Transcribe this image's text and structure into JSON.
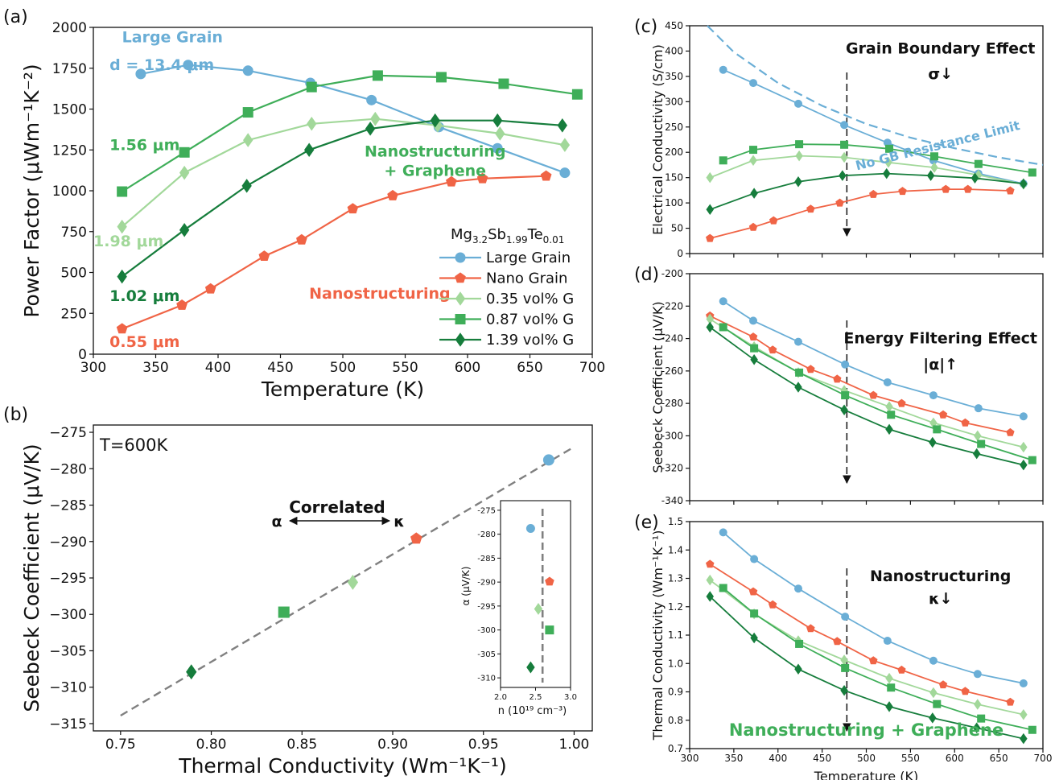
{
  "figure": {
    "panels": [
      {
        "key": "a",
        "label": "(a)",
        "type": "line",
        "xlabel": "Temperature (K)",
        "ylabel": "Power Factor (μWm⁻¹K⁻²)",
        "xlim": [
          300,
          700
        ],
        "ylim": [
          0,
          2000
        ],
        "xticks": [
          300,
          350,
          400,
          450,
          500,
          550,
          600,
          650,
          700
        ],
        "yticks": [
          0,
          250,
          500,
          750,
          1000,
          1250,
          1500,
          1750,
          2000
        ],
        "legend": {
          "title": "Mg3.2Sb1.99Te0.01",
          "title_parts": [
            "Mg",
            "3.2",
            "Sb",
            "1.99",
            "Te",
            "0.01"
          ],
          "placement": "lower-right"
        },
        "series": [
          {
            "name": "Large Grain",
            "color": "#6aaed6",
            "marker": "circle",
            "x": [
              338,
              376,
              424,
              474,
              523,
              577,
              624,
              678
            ],
            "y": [
              1715,
              1770,
              1735,
              1660,
              1555,
              1390,
              1260,
              1110
            ]
          },
          {
            "name": "Nano Grain",
            "color": "#f06446",
            "marker": "pentagon",
            "x": [
              323,
              371,
              394,
              437,
              467,
              508,
              540,
              587,
              612,
              663
            ],
            "y": [
              155,
              300,
              400,
              600,
              700,
              890,
              970,
              1055,
              1075,
              1090
            ]
          },
          {
            "name": "0.35 vol% G",
            "color": "#a2d89a",
            "marker": "diamond",
            "x": [
              323,
              373,
              424,
              475,
              526,
              576,
              626,
              678
            ],
            "y": [
              780,
              1110,
              1310,
              1410,
              1440,
              1400,
              1350,
              1280
            ]
          },
          {
            "name": "0.87 vol% G",
            "color": "#3fae59",
            "marker": "square",
            "x": [
              323,
              373,
              424,
              475,
              528,
              579,
              629,
              688
            ],
            "y": [
              995,
              1235,
              1480,
              1635,
              1705,
              1695,
              1655,
              1590
            ]
          },
          {
            "name": "1.39 vol% G",
            "color": "#167d3c",
            "marker": "diamond",
            "x": [
              323,
              373,
              423,
              473,
              522,
              574,
              624,
              676
            ],
            "y": [
              475,
              760,
              1030,
              1250,
              1380,
              1430,
              1430,
              1400
            ]
          }
        ],
        "annotations": [
          {
            "text": "Large Grain",
            "color": "#6aaed6",
            "x": 323,
            "y": 1910
          },
          {
            "text": "d = 13.4 μm",
            "color": "#6aaed6",
            "x": 313,
            "y": 1740
          },
          {
            "text": "1.56 μm",
            "color": "#3fae59",
            "x": 313,
            "y": 1250
          },
          {
            "text": "1.98 μm",
            "color": "#a2d89a",
            "x": 300,
            "y": 660
          },
          {
            "text": "1.02 μm",
            "color": "#167d3c",
            "x": 313,
            "y": 325
          },
          {
            "text": "0.55 μm",
            "color": "#f06446",
            "x": 313,
            "y": 45
          },
          {
            "text": "Nanostructuring",
            "color": "#f06446",
            "x": 473,
            "y": 340
          },
          {
            "text": "Nanostructuring",
            "color": "#3fae59",
            "x": 574,
            "y": 1210
          },
          {
            "text": "+ Graphene",
            "color": "#3fae59",
            "x": 574,
            "y": 1090
          }
        ]
      },
      {
        "key": "b",
        "label": "(b)",
        "type": "scatter",
        "xlabel": "Thermal Conductivity (Wm⁻¹K⁻¹)",
        "ylabel": "Seebeck Coefficient (μV/K)",
        "xlim": [
          0.735,
          1.01
        ],
        "ylim": [
          -316,
          -274
        ],
        "xticks": [
          0.75,
          0.8,
          0.85,
          0.9,
          0.95,
          1.0
        ],
        "xtick_labels": [
          "0.75",
          "0.80",
          "0.85",
          "0.90",
          "0.95",
          "1.00"
        ],
        "yticks": [
          -315,
          -310,
          -305,
          -300,
          -295,
          -290,
          -285,
          -280,
          -275
        ],
        "yticks_labels": [
          "−315",
          "−310",
          "−305",
          "−300",
          "−295",
          "−290",
          "−285",
          "−280",
          "−275"
        ],
        "condition": "T=600K",
        "fit_line": {
          "x": [
            0.75,
            1.0
          ],
          "y": [
            -313.9,
            -277.0
          ]
        },
        "points": [
          {
            "x": 0.986,
            "y": -278.8,
            "color": "#6aaed6",
            "marker": "circle"
          },
          {
            "x": 0.913,
            "y": -289.6,
            "color": "#f06446",
            "marker": "pentagon"
          },
          {
            "x": 0.878,
            "y": -295.6,
            "color": "#a2d89a",
            "marker": "diamond"
          },
          {
            "x": 0.84,
            "y": -299.7,
            "color": "#3fae59",
            "marker": "square"
          },
          {
            "x": 0.789,
            "y": -307.9,
            "color": "#167d3c",
            "marker": "diamond"
          }
        ],
        "arrow_text": {
          "title": "Correlated",
          "left": "α",
          "right": "κ"
        },
        "inset": {
          "xlabel": "n (10¹⁹ cm⁻³)",
          "ylabel": "α (μV/K)",
          "xlim": [
            2.0,
            3.0
          ],
          "ylim": [
            -312,
            -273
          ],
          "xticks": [
            2.0,
            2.5,
            3.0
          ],
          "xtick_labels": [
            "2.0",
            "2.5",
            "3.0"
          ],
          "yticks": [
            -310,
            -305,
            -300,
            -295,
            -290,
            -285,
            -280,
            -275
          ],
          "vline": 2.6,
          "points": [
            {
              "x": 2.43,
              "y": -278.8,
              "color": "#6aaed6",
              "marker": "circle"
            },
            {
              "x": 2.7,
              "y": -289.9,
              "color": "#f06446",
              "marker": "pentagon"
            },
            {
              "x": 2.54,
              "y": -295.6,
              "color": "#a2d89a",
              "marker": "diamond"
            },
            {
              "x": 2.7,
              "y": -300.0,
              "color": "#3fae59",
              "marker": "square"
            },
            {
              "x": 2.43,
              "y": -307.8,
              "color": "#167d3c",
              "marker": "diamond"
            }
          ]
        }
      },
      {
        "key": "c",
        "label": "(c)",
        "type": "line",
        "xlabel": "",
        "ylabel": "Electrical Conductivity (S/cm)",
        "xlim": [
          300,
          700
        ],
        "ylim": [
          0,
          450
        ],
        "xticks": [
          300,
          350,
          400,
          450,
          500,
          550,
          600,
          650,
          700
        ],
        "show_xtick_labels": false,
        "yticks": [
          0,
          50,
          100,
          150,
          200,
          250,
          300,
          350,
          400,
          450
        ],
        "series": [
          {
            "color": "#6aaed6",
            "marker": "circle",
            "x": [
              338,
              372,
              423,
              475,
              524,
              576,
              627,
              678
            ],
            "y": [
              363,
              337,
              296,
              254,
              219,
              184,
              158,
              138
            ]
          },
          {
            "color": "#f06446",
            "marker": "pentagon",
            "x": [
              323,
              372,
              395,
              437,
              470,
              508,
              541,
              590,
              615,
              663
            ],
            "y": [
              30,
              52,
              65,
              88,
              100,
              117,
              123,
              127,
              127,
              124
            ]
          },
          {
            "color": "#a2d89a",
            "marker": "diamond",
            "x": [
              323,
              372,
              424,
              475,
              525,
              577,
              627,
              678
            ],
            "y": [
              150,
              184,
              193,
              190,
              180,
              170,
              155,
              137
            ]
          },
          {
            "color": "#3fae59",
            "marker": "square",
            "x": [
              338,
              372,
              424,
              475,
              526,
              577,
              627,
              688
            ],
            "y": [
              184,
              205,
              216,
              215,
              207,
              192,
              177,
              160
            ]
          },
          {
            "color": "#167d3c",
            "marker": "diamond",
            "x": [
              323,
              373,
              423,
              473,
              523,
              573,
              623,
              678
            ],
            "y": [
              87,
              119,
              142,
              154,
              158,
              154,
              149,
              138
            ]
          }
        ],
        "limit_curve": {
          "color": "#6aaed6",
          "x": [
            320,
            350,
            400,
            450,
            500,
            550,
            600,
            650,
            700
          ],
          "y": [
            450,
            398,
            337,
            292,
            256,
            229,
            208,
            190,
            175
          ]
        },
        "vline_x": 478,
        "annotations": [
          {
            "text": "Grain Boundary Effect",
            "color": "#111111",
            "x": 584,
            "y": 395
          },
          {
            "text": "σ↓",
            "color": "#111111",
            "x": 584,
            "y": 345
          },
          {
            "text": "No GB Resistance Limit",
            "color": "#6aaed6",
            "x": 582,
            "y": 205
          }
        ]
      },
      {
        "key": "d",
        "label": "(d)",
        "type": "line",
        "xlabel": "",
        "ylabel": "Seebeck Coefficient (μV/K)",
        "xlim": [
          300,
          700
        ],
        "ylim": [
          -340,
          -200
        ],
        "xticks": [
          300,
          350,
          400,
          450,
          500,
          550,
          600,
          650,
          700
        ],
        "show_xtick_labels": false,
        "yticks": [
          -340,
          -320,
          -300,
          -280,
          -260,
          -240,
          -220,
          -200
        ],
        "series": [
          {
            "color": "#6aaed6",
            "marker": "circle",
            "x": [
              338,
              372,
              423,
              476,
              524,
              576,
              627,
              678
            ],
            "y": [
              -217,
              -229,
              -242,
              -256,
              -267,
              -275,
              -283,
              -288
            ]
          },
          {
            "color": "#f06446",
            "marker": "pentagon",
            "x": [
              323,
              372,
              394,
              437,
              467,
              508,
              540,
              587,
              612,
              663
            ],
            "y": [
              -226,
              -239,
              -247,
              -259,
              -265,
              -275,
              -280,
              -287,
              -292,
              -298
            ]
          },
          {
            "color": "#a2d89a",
            "marker": "diamond",
            "x": [
              323,
              373,
              423,
              475,
              526,
              576,
              626,
              678
            ],
            "y": [
              -228,
              -245,
              -261,
              -272,
              -282,
              -292,
              -300,
              -307
            ]
          },
          {
            "color": "#3fae59",
            "marker": "square",
            "x": [
              338,
              373,
              424,
              476,
              528,
              580,
              630,
              688
            ],
            "y": [
              -233,
              -246,
              -261,
              -275,
              -287,
              -296,
              -305,
              -315
            ]
          },
          {
            "color": "#167d3c",
            "marker": "diamond",
            "x": [
              323,
              373,
              423,
              475,
              526,
              575,
              625,
              678
            ],
            "y": [
              -233,
              -253,
              -270,
              -284,
              -296,
              -304,
              -311,
              -318
            ]
          }
        ],
        "vline_x": 478,
        "annotations": [
          {
            "text": "Energy Filtering Effect",
            "color": "#111111",
            "x": 584,
            "y": -243
          },
          {
            "text": "|α|↑",
            "color": "#111111",
            "x": 584,
            "y": -259
          }
        ]
      },
      {
        "key": "e",
        "label": "(e)",
        "type": "line",
        "xlabel": "Temperature (K)",
        "ylabel": "Thermal Conductivity (Wm⁻¹K⁻¹)",
        "xlim": [
          300,
          700
        ],
        "ylim": [
          0.7,
          1.5
        ],
        "xticks": [
          300,
          350,
          400,
          450,
          500,
          550,
          600,
          650,
          700
        ],
        "show_xtick_labels": true,
        "yticks": [
          0.7,
          0.8,
          0.9,
          1.0,
          1.1,
          1.2,
          1.3,
          1.4,
          1.5
        ],
        "ytick_labels": [
          "0.7",
          "0.8",
          "0.9",
          "1.0",
          "1.1",
          "1.2",
          "1.3",
          "1.4",
          "1.5"
        ],
        "series": [
          {
            "color": "#6aaed6",
            "marker": "circle",
            "x": [
              338,
              373,
              423,
              476,
              524,
              576,
              626,
              678
            ],
            "y": [
              1.462,
              1.368,
              1.264,
              1.165,
              1.08,
              1.01,
              0.963,
              0.93
            ]
          },
          {
            "color": "#f06446",
            "marker": "pentagon",
            "x": [
              323,
              372,
              394,
              437,
              467,
              508,
              540,
              587,
              612,
              663
            ],
            "y": [
              1.35,
              1.253,
              1.207,
              1.123,
              1.078,
              1.01,
              0.977,
              0.925,
              0.902,
              0.864
            ]
          },
          {
            "color": "#a2d89a",
            "marker": "diamond",
            "x": [
              323,
              373,
              423,
              475,
              526,
              576,
              626,
              678
            ],
            "y": [
              1.294,
              1.175,
              1.08,
              1.012,
              0.948,
              0.897,
              0.856,
              0.82
            ]
          },
          {
            "color": "#3fae59",
            "marker": "square",
            "x": [
              338,
              373,
              424,
              476,
              528,
              580,
              630,
              688
            ],
            "y": [
              1.266,
              1.176,
              1.069,
              0.984,
              0.915,
              0.857,
              0.806,
              0.766
            ]
          },
          {
            "color": "#167d3c",
            "marker": "diamond",
            "x": [
              323,
              373,
              423,
              475,
              526,
              575,
              625,
              678
            ],
            "y": [
              1.236,
              1.09,
              0.98,
              0.905,
              0.848,
              0.808,
              0.773,
              0.735
            ]
          }
        ],
        "vline_x": 478,
        "annotations": [
          {
            "text": "Nanostructuring",
            "color": "#111111",
            "x": 584,
            "y": 1.29
          },
          {
            "text": "κ↓",
            "color": "#111111",
            "x": 584,
            "y": 1.21
          },
          {
            "text": "Nanostructuring + Graphene",
            "color": "#3fae59",
            "x": 500,
            "y": 0.745
          }
        ]
      }
    ]
  }
}
